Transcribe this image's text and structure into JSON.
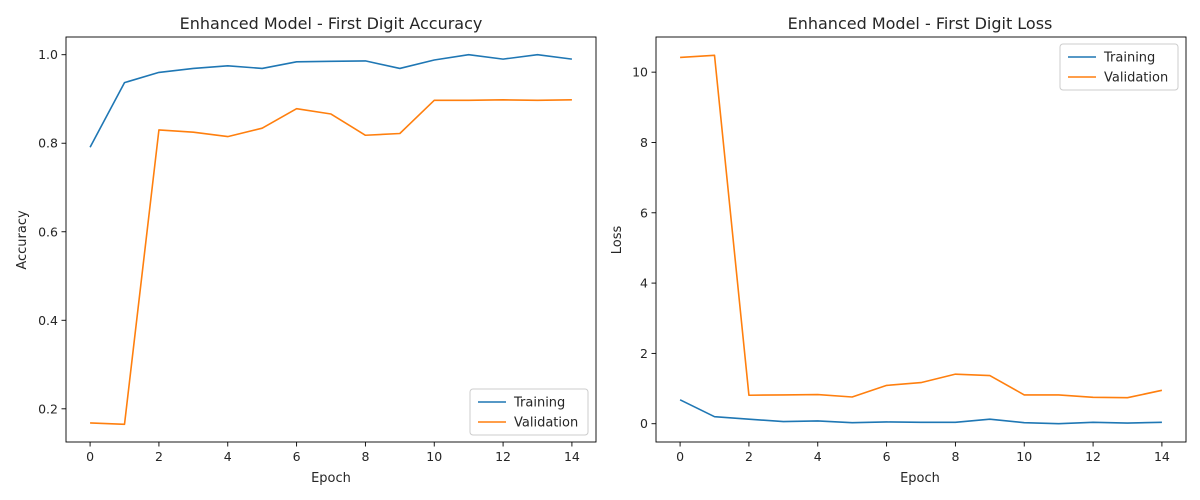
{
  "chart_data": [
    {
      "type": "line",
      "title": "Enhanced Model - First Digit Accuracy",
      "xlabel": "Epoch",
      "ylabel": "Accuracy",
      "xlim": [
        -0.7,
        14.7
      ],
      "ylim": [
        0.125,
        1.04
      ],
      "xticks": [
        0,
        2,
        4,
        6,
        8,
        10,
        12,
        14
      ],
      "yticks": [
        0.2,
        0.4,
        0.6,
        0.8,
        1.0
      ],
      "ytick_decimals": 1,
      "grid": false,
      "legend_position": "lower-right",
      "x": [
        0,
        1,
        2,
        3,
        4,
        5,
        6,
        7,
        8,
        9,
        10,
        11,
        12,
        13,
        14
      ],
      "series": [
        {
          "name": "Training",
          "color": "#1f77b4",
          "values": [
            0.791,
            0.937,
            0.96,
            0.969,
            0.975,
            0.969,
            0.984,
            0.985,
            0.986,
            0.969,
            0.988,
            1.0,
            0.99,
            1.0,
            0.99
          ]
        },
        {
          "name": "Validation",
          "color": "#ff7f0e",
          "values": [
            0.168,
            0.165,
            0.83,
            0.825,
            0.815,
            0.834,
            0.878,
            0.866,
            0.818,
            0.822,
            0.897,
            0.897,
            0.898,
            0.897,
            0.898
          ]
        }
      ]
    },
    {
      "type": "line",
      "title": "Enhanced Model - First Digit Loss",
      "xlabel": "Epoch",
      "ylabel": "Loss",
      "xlim": [
        -0.7,
        14.7
      ],
      "ylim": [
        -0.52,
        11.0
      ],
      "xticks": [
        0,
        2,
        4,
        6,
        8,
        10,
        12,
        14
      ],
      "yticks": [
        0,
        2,
        4,
        6,
        8,
        10
      ],
      "ytick_decimals": 0,
      "grid": false,
      "legend_position": "upper-right",
      "x": [
        0,
        1,
        2,
        3,
        4,
        5,
        6,
        7,
        8,
        9,
        10,
        11,
        12,
        13,
        14
      ],
      "series": [
        {
          "name": "Training",
          "color": "#1f77b4",
          "values": [
            0.68,
            0.2,
            0.13,
            0.06,
            0.08,
            0.03,
            0.05,
            0.04,
            0.04,
            0.13,
            0.03,
            0.0,
            0.04,
            0.02,
            0.04
          ]
        },
        {
          "name": "Validation",
          "color": "#ff7f0e",
          "values": [
            10.42,
            10.48,
            0.81,
            0.82,
            0.83,
            0.76,
            1.09,
            1.17,
            1.41,
            1.37,
            0.82,
            0.82,
            0.75,
            0.74,
            0.95
          ]
        }
      ]
    }
  ]
}
